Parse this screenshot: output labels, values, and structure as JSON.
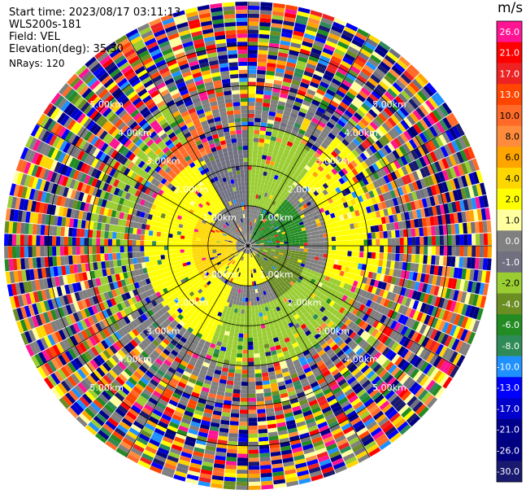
{
  "info": {
    "start_time": "Start time: 2023/08/17 03:11:13",
    "instrument": "WLS200s-181",
    "field": "Field: VEL",
    "elevation": "Elevation(deg): 35.30",
    "nrays": "NRays: 120"
  },
  "chart_data": {
    "type": "heatmap",
    "projection": "polar-ppi",
    "field": "VEL",
    "units": "m/s",
    "n_rays": 120,
    "range_rings_km": [
      1.0,
      2.0,
      3.0,
      4.0,
      5.0
    ],
    "range_ring_labels": [
      "1.00km",
      "2.00km",
      "3.00km",
      "4.00km",
      "5.00km"
    ],
    "max_range_km": 6.1,
    "colorbar": {
      "label": "m/s",
      "ticks": [
        "26.0",
        "21.0",
        "17.0",
        "13.0",
        "10.0",
        "8.0",
        "6.0",
        "4.0",
        "2.0",
        "1.0",
        "0.0",
        "-1.0",
        "-2.0",
        "-4.0",
        "-6.0",
        "-8.0",
        "-10.0",
        "-13.0",
        "-17.0",
        "-21.0",
        "-26.0",
        "-30.0"
      ],
      "colors": [
        "#ff1493",
        "#ff0000",
        "#ee2222",
        "#ff4500",
        "#ff6a28",
        "#ff8c3c",
        "#ffa500",
        "#ffd700",
        "#ffff00",
        "#ffffa0",
        "#808080",
        "#707080",
        "#9acd32",
        "#6b8e23",
        "#228b22",
        "#2e8b57",
        "#1e90ff",
        "#0000ff",
        "#0000cd",
        "#00008b",
        "#000080",
        "#191970"
      ]
    },
    "pattern": [
      {
        "az_from": 200,
        "az_to": 340,
        "range_km": [
          1.1,
          2.6
        ],
        "value": 2.0
      },
      {
        "az_from": 230,
        "az_to": 300,
        "range_km": [
          0.3,
          1.4
        ],
        "value": 4.0
      },
      {
        "az_from": 140,
        "az_to": 230,
        "range_km": [
          0.2,
          1.0
        ],
        "value": 2.0
      },
      {
        "az_from": 95,
        "az_to": 150,
        "range_km": [
          0.3,
          1.5
        ],
        "value": -4.0
      },
      {
        "az_from": 20,
        "az_to": 90,
        "range_km": [
          0.2,
          1.5
        ],
        "value": -6.0
      },
      {
        "az_from": 330,
        "az_to": 360,
        "range_km": [
          1.0,
          3.0
        ],
        "value": -1.0
      },
      {
        "az_from": 0,
        "az_to": 40,
        "range_km": [
          1.0,
          3.0
        ],
        "value": -2.0
      },
      {
        "az_from": 40,
        "az_to": 110,
        "range_km": [
          2.0,
          3.5
        ],
        "value": 2.0
      },
      {
        "az_from": 110,
        "az_to": 200,
        "range_km": [
          1.5,
          3.0
        ],
        "value": -2.0
      },
      {
        "az_from": 310,
        "az_to": 340,
        "range_km": [
          2.5,
          3.6
        ],
        "value": 10.0
      },
      {
        "az_from": 240,
        "az_to": 330,
        "range_km": [
          3.0,
          5.0
        ],
        "value": -2.0
      },
      {
        "az_from": 0,
        "az_to": 360,
        "range_km": [
          4.0,
          6.1
        ],
        "value": 0.0
      }
    ]
  }
}
